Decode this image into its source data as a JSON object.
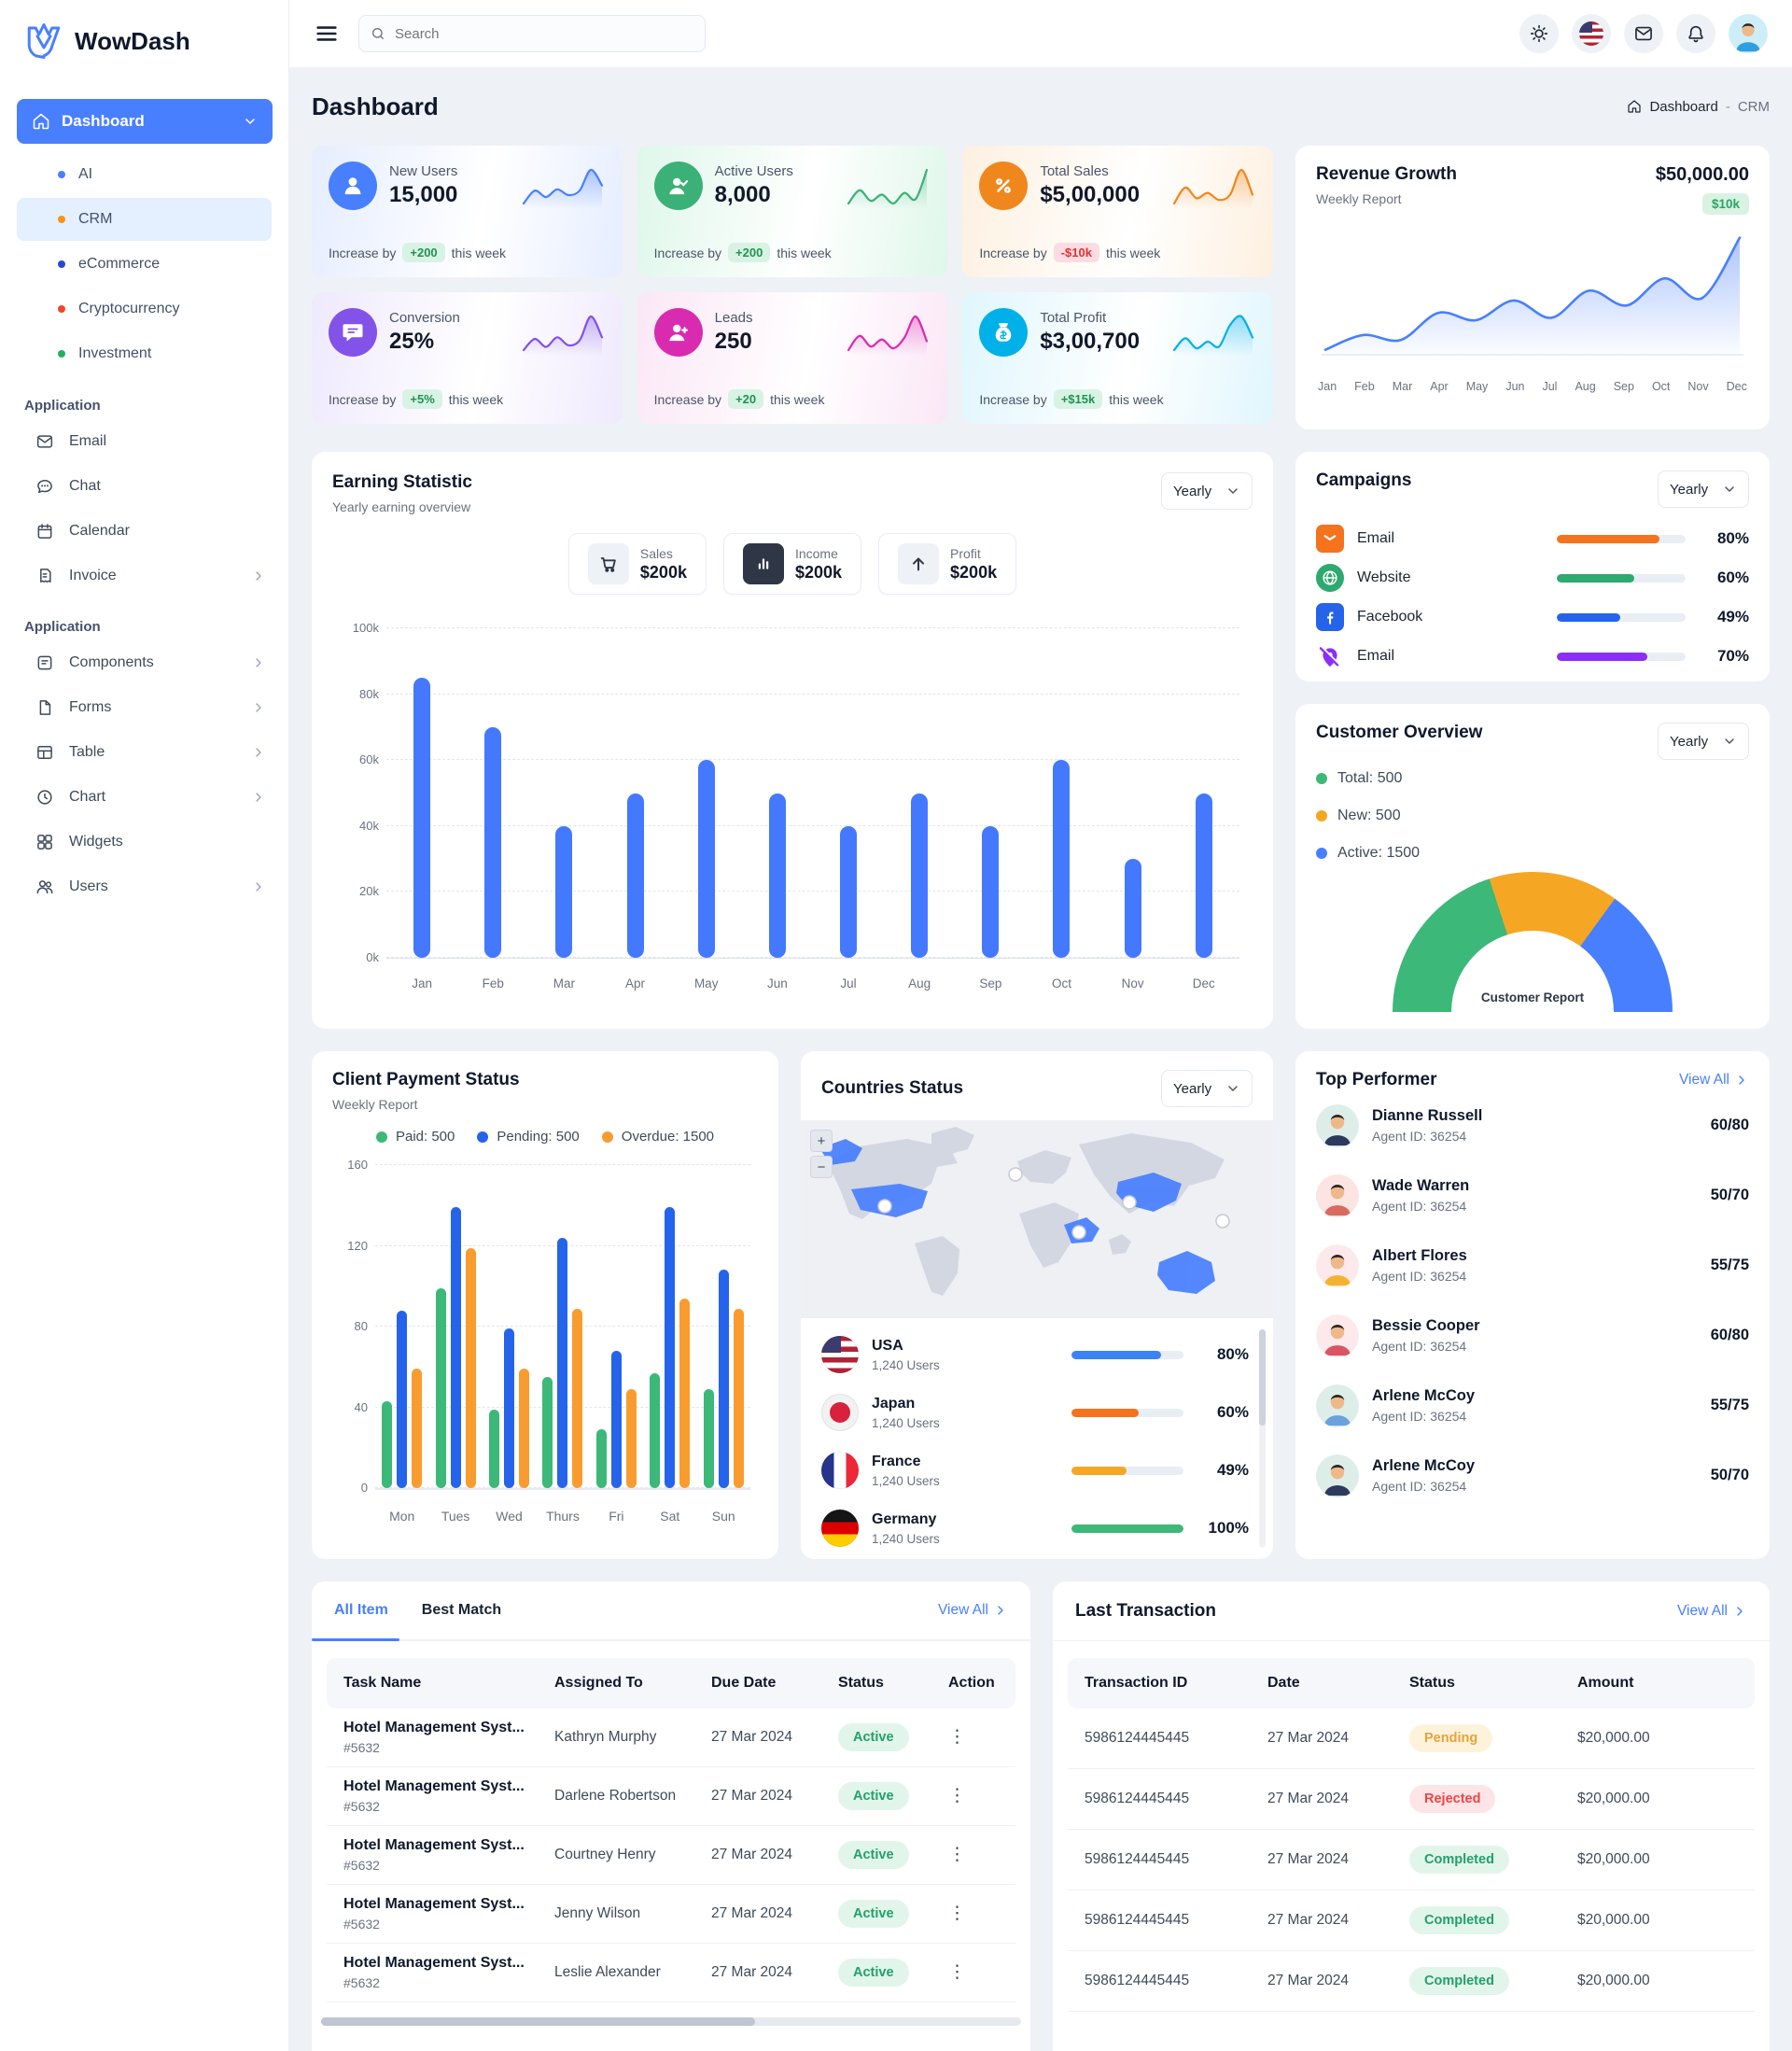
{
  "brand": {
    "name": "WowDash"
  },
  "topbar": {
    "search_placeholder": "Search"
  },
  "header": {
    "title": "Dashboard",
    "breadcrumb_home": "Dashboard",
    "breadcrumb_sep": "-",
    "breadcrumb_current": "CRM"
  },
  "sidebar": {
    "dashboard": "Dashboard",
    "submenu": [
      {
        "label": "AI",
        "color": "#487fff"
      },
      {
        "label": "CRM",
        "color": "#f4941e",
        "active": true
      },
      {
        "label": "eCommerce",
        "color": "#2948d0"
      },
      {
        "label": "Cryptocurrency",
        "color": "#f4442c"
      },
      {
        "label": "Investment",
        "color": "#27ae60"
      }
    ],
    "section1_label": "Application",
    "section1": [
      {
        "label": "Email",
        "icon": "email"
      },
      {
        "label": "Chat",
        "icon": "chat"
      },
      {
        "label": "Calendar",
        "icon": "calendar"
      },
      {
        "label": "Invoice",
        "icon": "invoice",
        "chevron": true
      }
    ],
    "section2_label": "Application",
    "section2": [
      {
        "label": "Components",
        "icon": "components",
        "chevron": true
      },
      {
        "label": "Forms",
        "icon": "forms-file",
        "chevron": true
      },
      {
        "label": "Table",
        "icon": "table",
        "chevron": true
      },
      {
        "label": "Chart",
        "icon": "chart-clock",
        "chevron": true
      },
      {
        "label": "Widgets",
        "icon": "widgets",
        "chevron": false
      },
      {
        "label": "Users",
        "icon": "users",
        "chevron": true
      }
    ]
  },
  "stats": [
    {
      "title": "New Users",
      "value": "15,000",
      "prefix": "Increase by",
      "change": "+200",
      "suffix": "this week",
      "direction": "up",
      "accent": "#487fff",
      "tint": "#e5edff",
      "glyph": "user",
      "spark": [
        20,
        40,
        30,
        42,
        33,
        40,
        72,
        48
      ]
    },
    {
      "title": "Active Users",
      "value": "8,000",
      "prefix": "Increase by",
      "change": "+200",
      "suffix": "this week",
      "direction": "up",
      "accent": "#3bb077",
      "tint": "#dff7ea",
      "glyph": "user-check",
      "spark": [
        30,
        45,
        33,
        40,
        30,
        42,
        35,
        68
      ]
    },
    {
      "title": "Total Sales",
      "value": "$5,00,000",
      "prefix": "Increase by",
      "change": "-$10k",
      "suffix": "this week",
      "direction": "down",
      "accent": "#f0871d",
      "tint": "#fdf0e0",
      "glyph": "percent",
      "spark": [
        30,
        48,
        36,
        42,
        34,
        40,
        68,
        40
      ]
    },
    {
      "title": "Conversion",
      "value": "25%",
      "prefix": "Increase by",
      "change": "+5%",
      "suffix": "this week",
      "direction": "up",
      "accent": "#8252e9",
      "tint": "#efe9fd",
      "glyph": "chat",
      "spark": [
        28,
        42,
        32,
        44,
        34,
        40,
        70,
        44
      ]
    },
    {
      "title": "Leads",
      "value": "250",
      "prefix": "Increase by",
      "change": "+20",
      "suffix": "this week",
      "direction": "up",
      "accent": "#d82bb0",
      "tint": "#fbe7f6",
      "glyph": "user-plus",
      "spark": [
        30,
        46,
        34,
        42,
        32,
        44,
        68,
        40
      ]
    },
    {
      "title": "Total Profit",
      "value": "$3,00,700",
      "prefix": "Increase by",
      "change": "+$15k",
      "suffix": "this week",
      "direction": "up",
      "accent": "#00b0e8",
      "tint": "#e0f6fd",
      "glyph": "money-bag",
      "spark": [
        30,
        44,
        32,
        40,
        34,
        60,
        70,
        45
      ]
    }
  ],
  "revenue_growth": {
    "title": "Revenue Growth",
    "subtitle": "Weekly Report",
    "amount": "$50,000.00",
    "badge": "$10k",
    "chart": {
      "type": "area",
      "color": "#487fff",
      "x": [
        "Jan",
        "Feb",
        "Mar",
        "Apr",
        "May",
        "Jun",
        "Jul",
        "Aug",
        "Sep",
        "Oct",
        "Nov",
        "Dec"
      ],
      "values": [
        4,
        16,
        12,
        34,
        28,
        44,
        30,
        52,
        40,
        62,
        46,
        95
      ]
    }
  },
  "earning_statistic": {
    "title": "Earning Statistic",
    "subtitle": "Yearly earning overview",
    "period": "Yearly",
    "pills": [
      {
        "label": "Sales",
        "value": "$200k",
        "icon": "cart",
        "dark": false
      },
      {
        "label": "Income",
        "value": "$200k",
        "icon": "bar-chart",
        "dark": true
      },
      {
        "label": "Profit",
        "value": "$200k",
        "icon": "arrow-up",
        "dark": false
      }
    ],
    "chart": {
      "type": "bar",
      "bar_color": "#4478ff",
      "ymax": 100,
      "ytick_labels": [
        "0k",
        "20k",
        "40k",
        "60k",
        "80k",
        "100k"
      ],
      "categories": [
        "Jan",
        "Feb",
        "Mar",
        "Apr",
        "May",
        "Jun",
        "Jul",
        "Aug",
        "Sep",
        "Oct",
        "Nov",
        "Dec"
      ],
      "values": [
        85,
        70,
        40,
        50,
        60,
        50,
        40,
        50,
        40,
        60,
        30,
        50
      ]
    }
  },
  "campaigns": {
    "title": "Campaigns",
    "period": "Yearly",
    "items": [
      {
        "label": "Email",
        "icon": "email-solid",
        "color": "#f4731c",
        "percent": 80,
        "percent_label": "80%"
      },
      {
        "label": "Website",
        "icon": "globe",
        "color": "#2ea96f",
        "percent": 60,
        "percent_label": "60%"
      },
      {
        "label": "Facebook",
        "icon": "facebook",
        "color": "#2563eb",
        "percent": 49,
        "percent_label": "49%"
      },
      {
        "label": "Email",
        "icon": "location-pin-off",
        "color": "#8b2ff5",
        "percent": 70,
        "percent_label": "70%"
      }
    ]
  },
  "customer_overview": {
    "title": "Customer Overview",
    "period": "Yearly",
    "gauge_label": "Customer Report",
    "legend": [
      {
        "label": "Total: 500",
        "color": "#3cb878"
      },
      {
        "label": "New: 500",
        "color": "#f5a623"
      },
      {
        "label": "Active: 1500",
        "color": "#487fff"
      }
    ],
    "gauge_segments": [
      {
        "name": "Total",
        "percent": 40,
        "color": "#3cb878"
      },
      {
        "name": "New",
        "percent": 30,
        "color": "#f5a623"
      },
      {
        "name": "Active",
        "percent": 30,
        "color": "#487fff"
      }
    ]
  },
  "client_payment": {
    "title": "Client Payment Status",
    "subtitle": "Weekly Report",
    "legend": [
      {
        "label": "Paid: 500",
        "color": "#3cb878"
      },
      {
        "label": "Pending: 500",
        "color": "#2563eb"
      },
      {
        "label": "Overdue: 1500",
        "color": "#f99c30"
      }
    ],
    "chart": {
      "type": "bar",
      "ymax": 160,
      "yticks": [
        "0",
        "40",
        "80",
        "120",
        "160"
      ],
      "categories": [
        "Mon",
        "Tues",
        "Wed",
        "Thurs",
        "Fri",
        "Sat",
        "Sun"
      ],
      "series": [
        {
          "name": "Paid",
          "color": "#3cb878",
          "values": [
            43,
            99,
            39,
            55,
            29,
            57,
            49
          ]
        },
        {
          "name": "Pending",
          "color": "#2563eb",
          "values": [
            88,
            139,
            79,
            124,
            68,
            139,
            108
          ]
        },
        {
          "name": "Overdue",
          "color": "#f99c30",
          "values": [
            59,
            119,
            59,
            89,
            49,
            94,
            89
          ]
        }
      ]
    }
  },
  "countries": {
    "title": "Countries Status",
    "period": "Yearly",
    "items": [
      {
        "name": "USA",
        "users": "1,240 Users",
        "flag": "usa",
        "color": "#3b82f6",
        "percent": 80,
        "percent_label": "80%"
      },
      {
        "name": "Japan",
        "users": "1,240 Users",
        "flag": "japan",
        "color": "#f4731c",
        "percent": 60,
        "percent_label": "60%"
      },
      {
        "name": "France",
        "users": "1,240 Users",
        "flag": "france",
        "color": "#f5a623",
        "percent": 49,
        "percent_label": "49%"
      },
      {
        "name": "Germany",
        "users": "1,240 Users",
        "flag": "germany",
        "color": "#3cb878",
        "percent": 100,
        "percent_label": "100%"
      }
    ]
  },
  "top_performer": {
    "title": "Top Performer",
    "view_all": "View All",
    "rows": [
      {
        "name": "Dianne Russell",
        "agent_id": "Agent ID: 36254",
        "score": "60/80"
      },
      {
        "name": "Wade Warren",
        "agent_id": "Agent ID: 36254",
        "score": "50/70"
      },
      {
        "name": "Albert Flores",
        "agent_id": "Agent ID: 36254",
        "score": "55/75"
      },
      {
        "name": "Bessie Cooper",
        "agent_id": "Agent ID: 36254",
        "score": "60/80"
      },
      {
        "name": "Arlene McCoy",
        "agent_id": "Agent ID: 36254",
        "score": "55/75"
      },
      {
        "name": "Arlene McCoy",
        "agent_id": "Agent ID: 36254",
        "score": "50/70"
      }
    ]
  },
  "tasks": {
    "tabs": [
      {
        "label": "All Item",
        "active": true
      },
      {
        "label": "Best Match",
        "active": false
      }
    ],
    "view_all": "View All",
    "columns": [
      "Task Name",
      "Assigned To",
      "Due Date",
      "Status",
      "Action"
    ],
    "rows": [
      {
        "task": "Hotel Management Syst...",
        "ref": "#5632",
        "assigned": "Kathryn Murphy",
        "due": "27 Mar 2024",
        "status": "Active"
      },
      {
        "task": "Hotel Management Syst...",
        "ref": "#5632",
        "assigned": "Darlene Robertson",
        "due": "27 Mar 2024",
        "status": "Active"
      },
      {
        "task": "Hotel Management Syst...",
        "ref": "#5632",
        "assigned": "Courtney Henry",
        "due": "27 Mar 2024",
        "status": "Active"
      },
      {
        "task": "Hotel Management Syst...",
        "ref": "#5632",
        "assigned": "Jenny Wilson",
        "due": "27 Mar 2024",
        "status": "Active"
      },
      {
        "task": "Hotel Management Syst...",
        "ref": "#5632",
        "assigned": "Leslie Alexander",
        "due": "27 Mar 2024",
        "status": "Active"
      }
    ]
  },
  "transactions": {
    "title": "Last Transaction",
    "view_all": "View All",
    "columns": [
      "Transaction ID",
      "Date",
      "Status",
      "Amount"
    ],
    "rows": [
      {
        "id": "5986124445445",
        "date": "27 Mar 2024",
        "status": "Pending",
        "amount": "$20,000.00"
      },
      {
        "id": "5986124445445",
        "date": "27 Mar 2024",
        "status": "Rejected",
        "amount": "$20,000.00"
      },
      {
        "id": "5986124445445",
        "date": "27 Mar 2024",
        "status": "Completed",
        "amount": "$20,000.00"
      },
      {
        "id": "5986124445445",
        "date": "27 Mar 2024",
        "status": "Completed",
        "amount": "$20,000.00"
      },
      {
        "id": "5986124445445",
        "date": "27 Mar 2024",
        "status": "Completed",
        "amount": "$20,000.00"
      }
    ]
  }
}
